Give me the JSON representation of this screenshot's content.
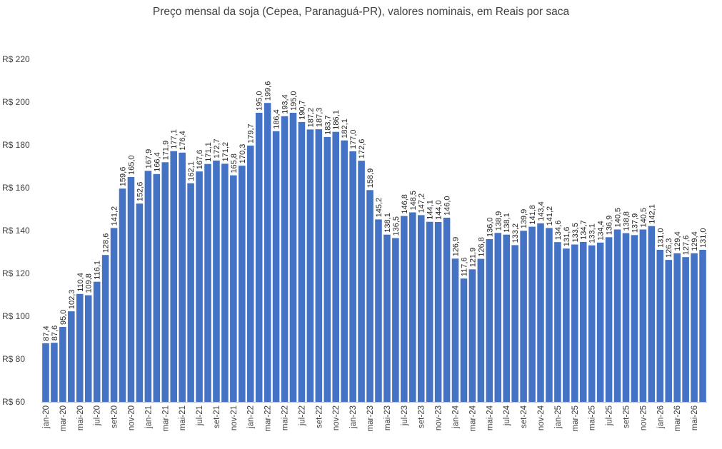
{
  "chart_data": {
    "type": "bar",
    "title": "Preço mensal da soja (Cepea, Paranaguá-PR), valores nominais, em Reais por saca",
    "xlabel": "",
    "ylabel": "",
    "ylim": [
      60,
      220
    ],
    "y_ticks": [
      "R$ 60",
      "R$ 80",
      "R$ 100",
      "R$ 120",
      "R$ 140",
      "R$ 160",
      "R$ 180",
      "R$ 200",
      "R$ 220"
    ],
    "y_tick_values": [
      60,
      80,
      100,
      120,
      140,
      160,
      180,
      200,
      220
    ],
    "grid": false,
    "legend": "none",
    "bar_color": "#4472C4",
    "categories": [
      "jan-20",
      "fev-20",
      "mar-20",
      "abr-20",
      "mai-20",
      "jun-20",
      "jul-20",
      "ago-20",
      "set-20",
      "out-20",
      "nov-20",
      "dez-20",
      "jan-21",
      "fev-21",
      "mar-21",
      "abr-21",
      "mai-21",
      "jun-21",
      "jul-21",
      "ago-21",
      "set-21",
      "out-21",
      "nov-21",
      "dez-21",
      "jan-22",
      "fev-22",
      "mar-22",
      "abr-22",
      "mai-22",
      "jun-22",
      "jul-22",
      "ago-22",
      "set-22",
      "out-22",
      "nov-22",
      "dez-22",
      "jan-23",
      "fev-23",
      "mar-23",
      "abr-23",
      "mai-23",
      "jun-23",
      "jul-23",
      "ago-23",
      "set-23",
      "out-23",
      "nov-23",
      "dez-23",
      "jan-24",
      "fev-24",
      "mar-24",
      "abr-24",
      "mai-24",
      "jun-24",
      "jul-24",
      "ago-24",
      "set-24",
      "out-24",
      "nov-24",
      "dez-24",
      "jan-25",
      "fev-25",
      "mar-25",
      "abr-25",
      "mai-25",
      "jun-25",
      "jul-25",
      "ago-25",
      "set-25",
      "out-25",
      "nov-25",
      "dez-25",
      "jan-26",
      "fev-26",
      "mar-26",
      "abr-26",
      "mai-26",
      "jun-26"
    ],
    "x_tick_labels": [
      "jan-20",
      "mar-20",
      "mai-20",
      "jul-20",
      "set-20",
      "nov-20",
      "jan-21",
      "mar-21",
      "mai-21",
      "jul-21",
      "set-21",
      "nov-21",
      "jan-22",
      "mar-22",
      "mai-22",
      "jul-22",
      "set-22",
      "nov-22",
      "jan-23",
      "mar-23",
      "mai-23",
      "jul-23",
      "set-23",
      "nov-23",
      "jan-24",
      "mar-24",
      "mai-24",
      "jul-24",
      "set-24",
      "nov-24",
      "jan-25",
      "mar-25",
      "mai-25",
      "jul-25",
      "set-25",
      "nov-25",
      "jan-26",
      "mar-26",
      "mai-26"
    ],
    "values": [
      87.4,
      87.6,
      95.0,
      102.3,
      110.4,
      109.8,
      116.1,
      128.6,
      141.2,
      159.6,
      165.0,
      152.6,
      167.9,
      166.4,
      171.9,
      177.1,
      176.4,
      162.1,
      167.6,
      171.1,
      172.7,
      171.2,
      165.8,
      170.3,
      179.7,
      195.0,
      199.6,
      186.4,
      193.4,
      195.0,
      190.7,
      187.2,
      187.3,
      183.7,
      186.1,
      182.1,
      177.0,
      172.6,
      158.9,
      145.2,
      138.1,
      136.5,
      146.8,
      148.5,
      147.2,
      144.1,
      144.0,
      146.0,
      126.9,
      117.6,
      121.9,
      126.8,
      136.0,
      138.9,
      138.1,
      133.2,
      139.9,
      141.8,
      143.4,
      141.2,
      134.6,
      131.6,
      133.5,
      134.7,
      133.1,
      134.4,
      136.9,
      140.5,
      138.8,
      137.9,
      140.5,
      142.1,
      131.0,
      126.3,
      129.4,
      127.6,
      129.4,
      131.0
    ],
    "data_labels": [
      "87,4",
      "87,6",
      "95,0",
      "102,3",
      "110,4",
      "109,8",
      "116,1",
      "128,6",
      "141,2",
      "159,6",
      "165,0",
      "152,6",
      "167,9",
      "166,4",
      "171,9",
      "177,1",
      "176,4",
      "162,1",
      "167,6",
      "171,1",
      "172,7",
      "171,2",
      "165,8",
      "170,3",
      "179,7",
      "195,0",
      "199,6",
      "186,4",
      "193,4",
      "195,0",
      "190,7",
      "187,2",
      "187,3",
      "183,7",
      "186,1",
      "182,1",
      "177,0",
      "172,6",
      "158,9",
      "145,2",
      "138,1",
      "136,5",
      "146,8",
      "148,5",
      "147,2",
      "144,1",
      "144,0",
      "146,0",
      "126,9",
      "117,6",
      "121,9",
      "126,8",
      "136,0",
      "138,9",
      "138,1",
      "133,2",
      "139,9",
      "141,8",
      "143,4",
      "141,2",
      "134,6",
      "131,6",
      "133,5",
      "134,7",
      "133,1",
      "134,4",
      "136,9",
      "140,5",
      "138,8",
      "137,9",
      "140,5",
      "142,1",
      "131,0",
      "126,3",
      "129,4",
      "127,6",
      "129,4",
      "131,0"
    ]
  }
}
